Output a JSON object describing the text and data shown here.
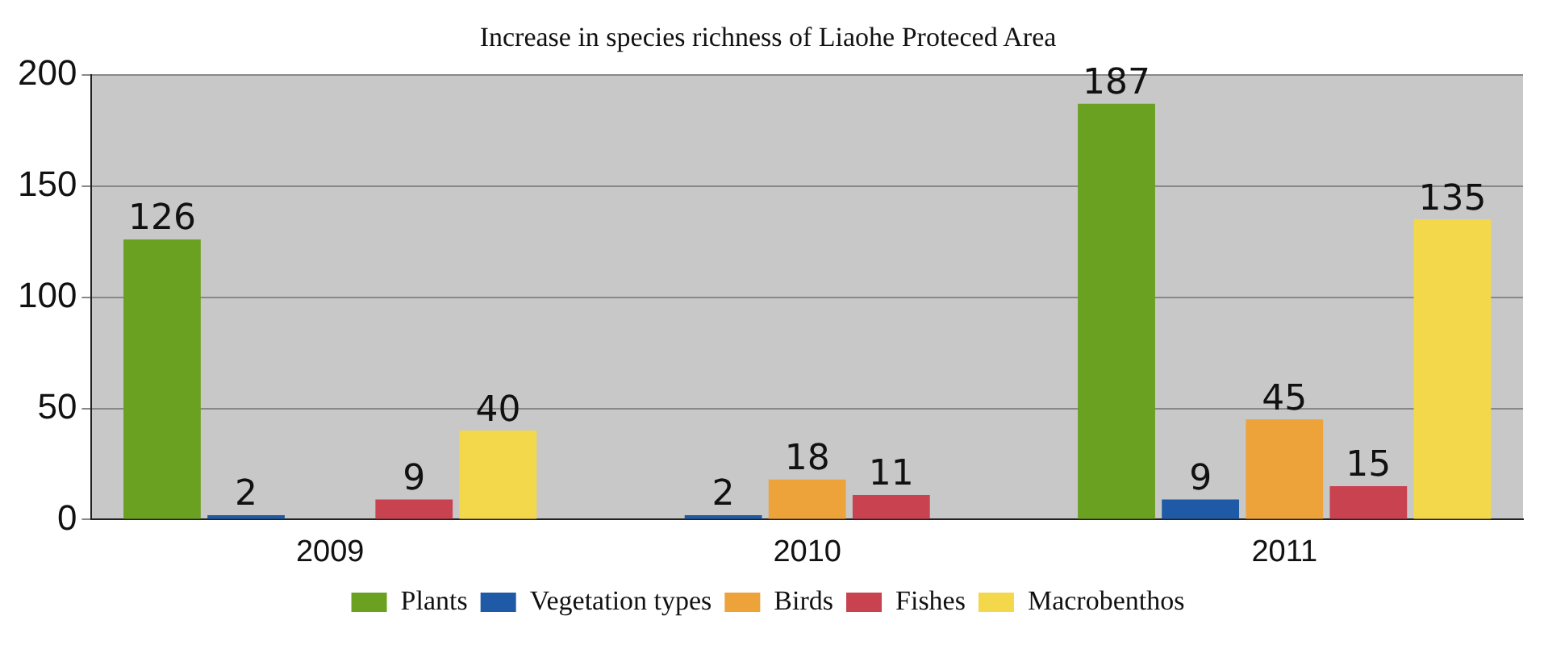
{
  "chart_data": {
    "type": "bar",
    "title": "Increase in species richness of Liaohe Proteced Area",
    "categories": [
      "2009",
      "2010",
      "2011"
    ],
    "series": [
      {
        "name": "Plants",
        "color": "#6aa121",
        "values": [
          126,
          null,
          187
        ]
      },
      {
        "name": "Vegetation types",
        "color": "#1f5aa6",
        "values": [
          2,
          2,
          9
        ]
      },
      {
        "name": "Birds",
        "color": "#eea23a",
        "values": [
          null,
          18,
          45
        ]
      },
      {
        "name": "Fishes",
        "color": "#c8424f",
        "values": [
          9,
          11,
          15
        ]
      },
      {
        "name": "Macrobenthos",
        "color": "#f2d84a",
        "values": [
          40,
          null,
          135
        ]
      }
    ],
    "ylim": [
      0,
      200
    ],
    "yticks": [
      0,
      50,
      100,
      150,
      200
    ],
    "grid": "y",
    "legend": "bottom",
    "data_labels": true
  }
}
